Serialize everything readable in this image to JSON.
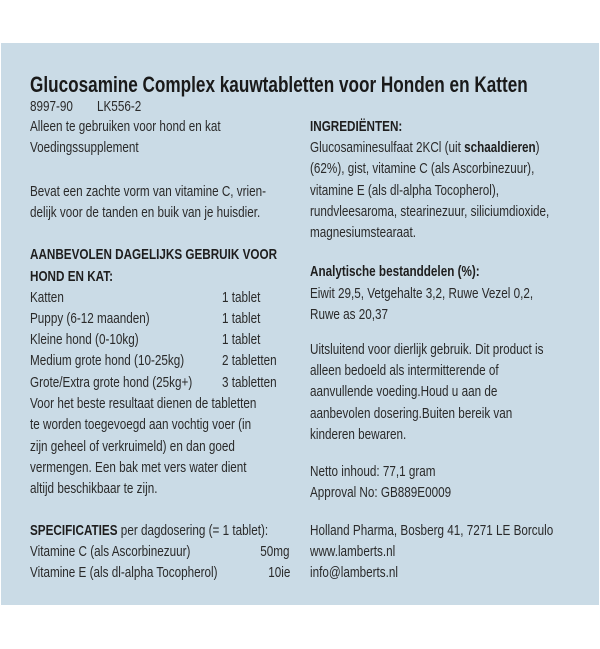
{
  "title": "Glucosamine Complex kauwtabletten voor Honden en Katten",
  "codes": [
    "8997-90",
    "LK556-2"
  ],
  "left": {
    "intro": [
      "Alleen te gebruiken voor hond en kat",
      "Voedingssupplement"
    ],
    "description": [
      "Bevat een zachte vorm van vitamine C, vrien-",
      "delijk voor de tanden en buik van je huisdier."
    ],
    "dosage_heading": [
      "AANBEVOLEN DAGELIJKS GEBRUIK VOOR",
      "HOND EN KAT:"
    ],
    "dosage": [
      {
        "who": "Katten",
        "amount": "1 tablet"
      },
      {
        "who": "Puppy (6-12 maanden)",
        "amount": "1 tablet"
      },
      {
        "who": "Kleine hond (0-10kg)",
        "amount": "1 tablet"
      },
      {
        "who": "Medium grote hond (10-25kg)",
        "amount": "2 tabletten"
      },
      {
        "who": "Grote/Extra grote hond (25kg+)",
        "amount": "3 tabletten"
      }
    ],
    "instructions": [
      "Voor het beste resultaat dienen de tabletten",
      "te worden toegevoegd aan vochtig voer (in",
      "zijn geheel of verkruimeld) en dan goed",
      "vermengen. Een bak met vers water dient",
      "altijd beschikbaar te zijn."
    ],
    "spec_heading_bold": "SPECIFICATIES",
    "spec_heading_rest": " per dagdosering (= 1 tablet):",
    "specs": [
      {
        "name": "Vitamine C (als Ascorbinezuur)",
        "value": "50mg"
      },
      {
        "name": "Vitamine E (als dl-alpha Tocopherol)",
        "value": "10ie"
      }
    ]
  },
  "right": {
    "ingredients_heading": "INGREDIËNTEN:",
    "ingredients_1a": "Glucosaminesulfaat 2KCl (uit ",
    "ingredients_1b": "schaaldieren",
    "ingredients_1c": ")",
    "ingredients": [
      "(62%), gist, vitamine C (als Ascorbinezuur),",
      "vitamine E (als dl-alpha Tocopherol),",
      "rundvleesaroma, stearinezuur, siliciumdioxide,",
      "magnesiumstearaat."
    ],
    "analysis_heading": "Analytische bestanddelen (%):",
    "analysis": [
      "Eiwit 29,5, Vetgehalte 3,2, Ruwe Vezel 0,2,",
      "Ruwe as 20,37"
    ],
    "notice": [
      "Uitsluitend voor dierlijk gebruik. Dit product is",
      "alleen bedoeld als intermitterende of",
      "aanvullende voeding.Houd u aan de",
      "aanbevolen dosering.Buiten bereik van",
      "kinderen bewaren."
    ],
    "net_content": "Netto inhoud: 77,1 gram",
    "approval": "Approval No: GB889E0009",
    "address": "Holland Pharma, Bosberg 41, 7271 LE Borculo",
    "website": "www.lamberts.nl",
    "email": "info@lamberts.nl"
  },
  "colors": {
    "panel": "#cadbe6",
    "text": "#2a2a2a"
  }
}
